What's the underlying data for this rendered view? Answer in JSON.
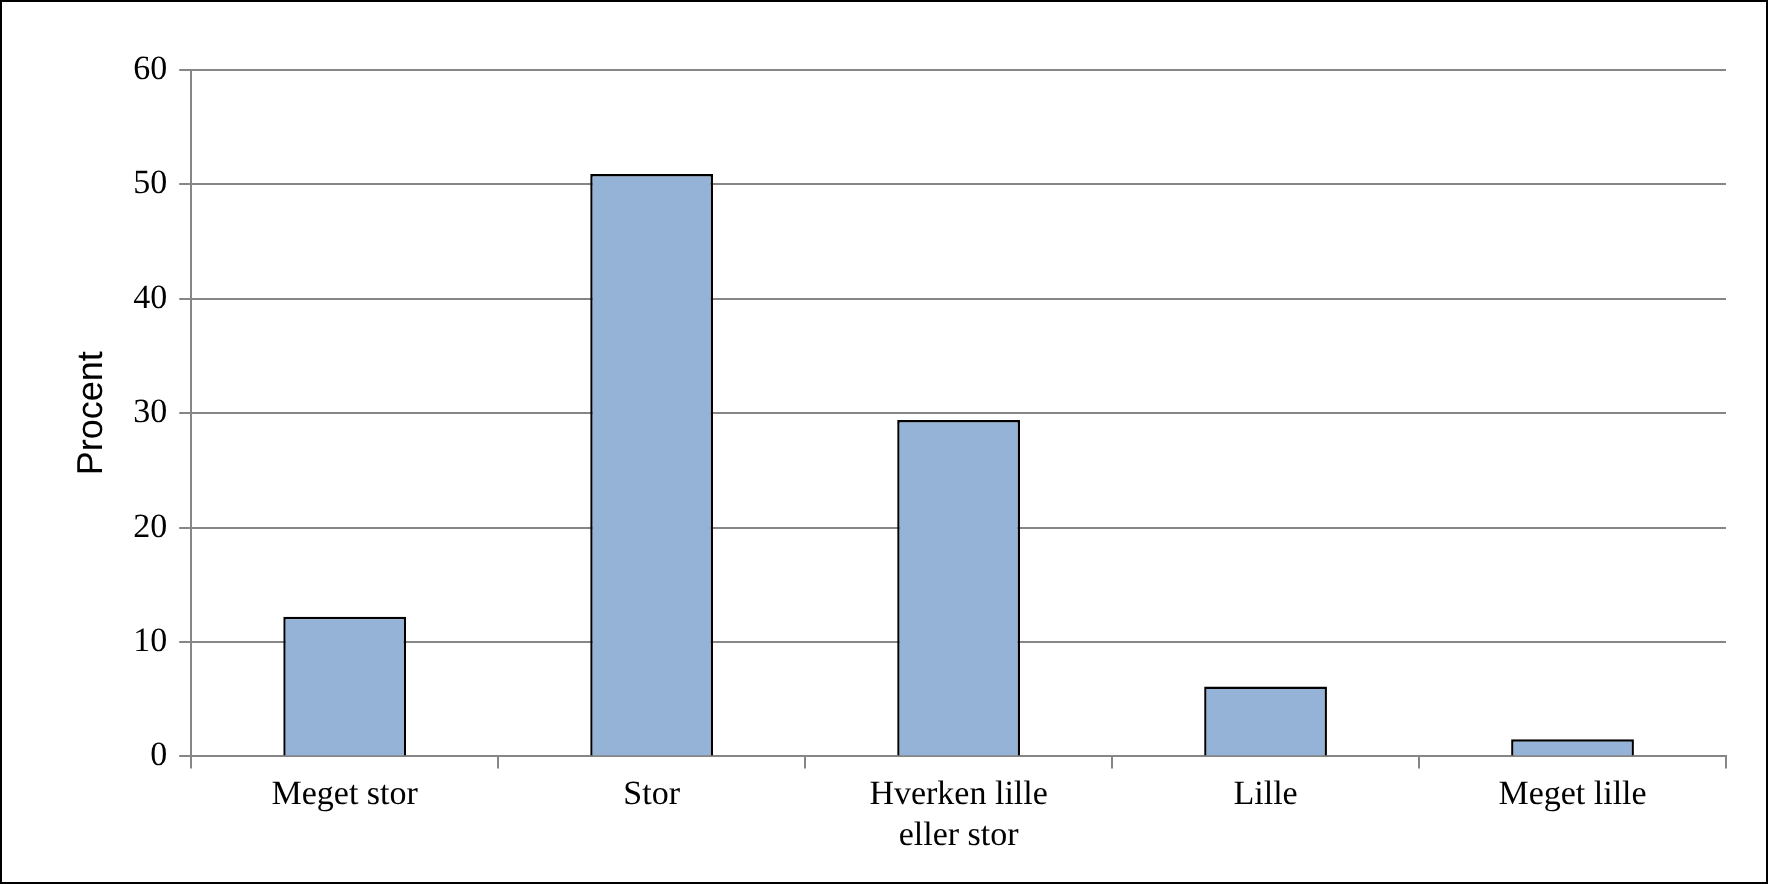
{
  "chart_data": {
    "type": "bar",
    "ylabel": "Procent",
    "categories": [
      "Meget stor",
      "Stor",
      "Hverken lille eller stor",
      "Lille",
      "Meget lille"
    ],
    "values": [
      12.2,
      50.9,
      29.4,
      6.1,
      1.5
    ],
    "color": "#95b3d7",
    "ylim": [
      0,
      60
    ],
    "yticks": [
      0,
      10,
      20,
      30,
      40,
      50,
      60
    ],
    "grid": "y"
  }
}
